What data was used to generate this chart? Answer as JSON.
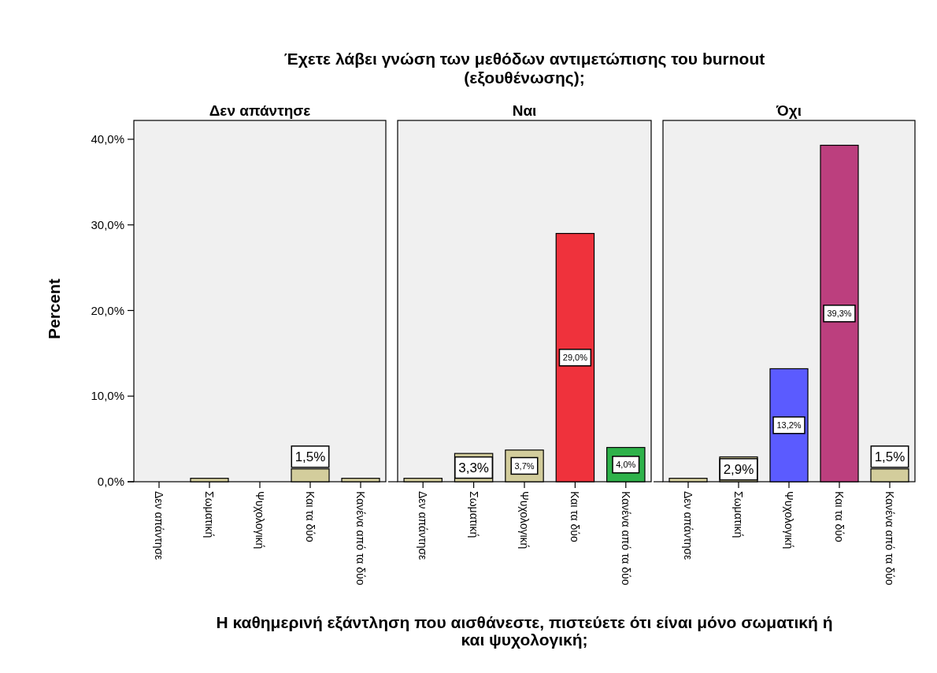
{
  "chart_data": [
    {
      "type": "bar",
      "title": "Δεν απάντησε",
      "ylabel": "Percent",
      "annotations": [
        "Έχετε λάβει γνώση των μεθόδων αντιμετώπισης του burnout (εξουθένωσης);"
      ],
      "categories": [
        "Δεν απάντησε",
        "Σωματική",
        "Ψυχολογική",
        "Και τα δύο",
        "Κανένα από τα δύο"
      ],
      "values": [
        null,
        0.4,
        null,
        1.5,
        0.4
      ],
      "colors": [
        null,
        "#d3cd9c",
        null,
        "#d3cd9c",
        "#d3cd9c"
      ],
      "value_labels": [
        null,
        null,
        null,
        "1,5%",
        null
      ],
      "ylim": [
        0,
        42.2
      ],
      "yticks": [
        {
          "value": 0,
          "label": "0,0%"
        },
        {
          "value": 10,
          "label": "10,0%"
        },
        {
          "value": 20,
          "label": "20,0%"
        },
        {
          "value": 30,
          "label": "30,0%"
        },
        {
          "value": 40,
          "label": "40,0%"
        }
      ]
    },
    {
      "type": "bar",
      "title": "Ναι",
      "xlabel": "Η καθημερινή εξάντληση που αισθάνεστε, πιστεύετε ότι είναι μόνο σωματική ή και ψυχολογική;",
      "categories": [
        "Δεν απάντησε",
        "Σωματική",
        "Ψυχολογική",
        "Και τα δύο",
        "Κανένα από τα δύο"
      ],
      "values": [
        0.4,
        3.3,
        3.7,
        29.0,
        4.0
      ],
      "colors": [
        "#d3cd9c",
        "#d3cd9c",
        "#d3cd9c",
        "#ef323c",
        "#2eb24a"
      ],
      "value_labels": [
        null,
        "3,3%",
        "3,7%",
        "29,0%",
        "4,0%"
      ],
      "ylim": [
        0,
        42.2
      ],
      "tick_labels": "x"
    },
    {
      "type": "bar",
      "title": "Όχι",
      "categories": [
        "Δεν απάντησε",
        "Σωματική",
        "Ψυχολογική",
        "Και τα δύο",
        "Κανένα από τα δύο"
      ],
      "values": [
        0.4,
        2.9,
        13.2,
        39.3,
        1.5
      ],
      "colors": [
        "#d3cd9c",
        "#d3cd9c",
        "#5b5bff",
        "#bc3f7e",
        "#d3cd9c"
      ],
      "value_labels": [
        null,
        "2,9%",
        "13,2%",
        "39,3%",
        "1,5%"
      ],
      "ylim": [
        0,
        42.2
      ],
      "tick_labels": "x"
    }
  ]
}
